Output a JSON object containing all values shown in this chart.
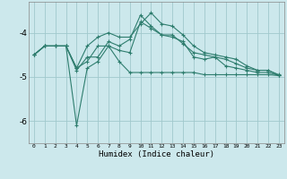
{
  "xlabel": "Humidex (Indice chaleur)",
  "x": [
    0,
    1,
    2,
    3,
    4,
    5,
    6,
    7,
    8,
    9,
    10,
    11,
    12,
    13,
    14,
    15,
    16,
    17,
    18,
    19,
    20,
    21,
    22,
    23
  ],
  "line1": [
    -4.5,
    -4.3,
    -4.3,
    -4.3,
    -4.8,
    -4.3,
    -4.1,
    -4.0,
    -4.1,
    -4.1,
    -3.8,
    -3.55,
    -3.8,
    -3.85,
    -4.05,
    -4.3,
    -4.45,
    -4.5,
    -4.55,
    -4.6,
    -4.75,
    -4.85,
    -4.85,
    -4.95
  ],
  "line2": [
    -4.5,
    -4.3,
    -4.3,
    -4.3,
    -4.8,
    -4.65,
    -4.3,
    -4.3,
    -4.4,
    -4.45,
    -3.75,
    -3.9,
    -4.05,
    -4.05,
    -4.25,
    -4.45,
    -4.5,
    -4.55,
    -4.75,
    -4.8,
    -4.85,
    -4.9,
    -4.9,
    -4.97
  ],
  "line3": [
    -4.5,
    -4.3,
    -4.3,
    -4.3,
    -6.1,
    -4.8,
    -4.65,
    -4.3,
    -4.65,
    -4.9,
    -4.9,
    -4.9,
    -4.9,
    -4.9,
    -4.9,
    -4.9,
    -4.95,
    -4.95,
    -4.95,
    -4.95,
    -4.95,
    -4.95,
    -4.95,
    -4.97
  ],
  "line4": [
    -4.5,
    -4.3,
    -4.3,
    -4.3,
    -4.85,
    -4.55,
    -4.55,
    -4.2,
    -4.3,
    -4.15,
    -3.6,
    -3.85,
    -4.05,
    -4.1,
    -4.2,
    -4.55,
    -4.6,
    -4.55,
    -4.6,
    -4.7,
    -4.8,
    -4.85,
    -4.85,
    -4.97
  ],
  "bg_color": "#cce8ec",
  "line_color": "#2e7d6e",
  "grid_color": "#a0c8cc",
  "ylim": [
    -6.5,
    -3.3
  ],
  "yticks": [
    -6.0,
    -5.0,
    -4.0
  ],
  "xlim": [
    -0.5,
    23.5
  ]
}
